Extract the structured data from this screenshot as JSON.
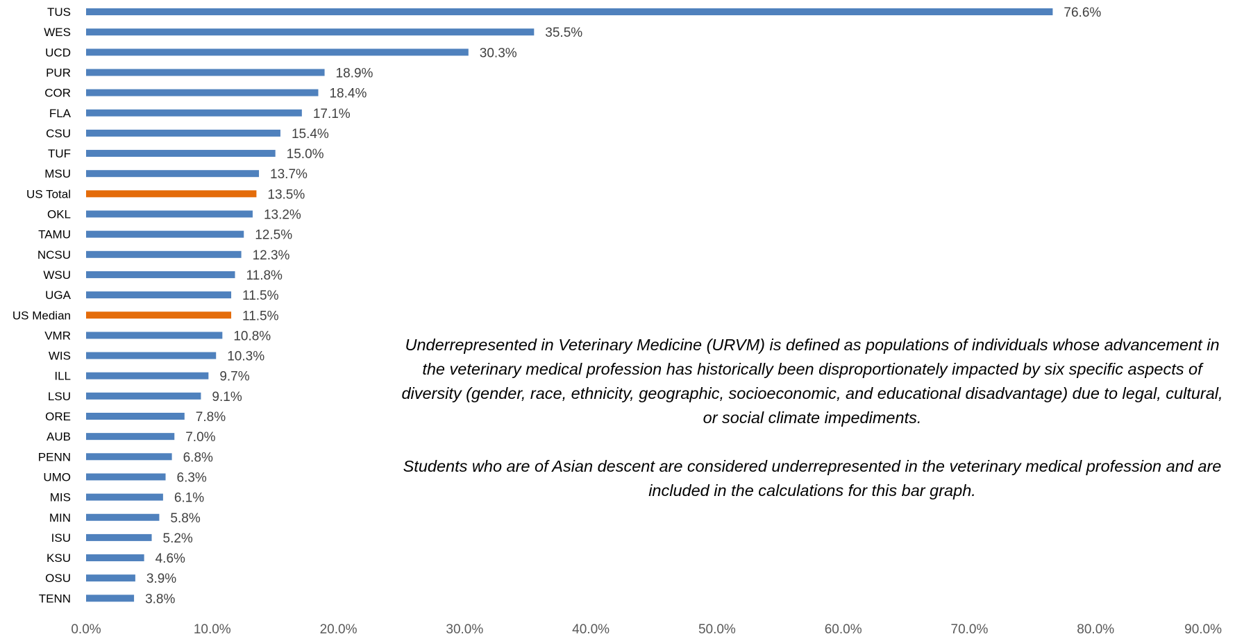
{
  "chart_data": {
    "type": "bar",
    "orientation": "horizontal",
    "categories": [
      "TUS",
      "WES",
      "UCD",
      "PUR",
      "COR",
      "FLA",
      "CSU",
      "TUF",
      "MSU",
      "US Total",
      "OKL",
      "TAMU",
      "NCSU",
      "WSU",
      "UGA",
      "US Median",
      "VMR",
      "WIS",
      "ILL",
      "LSU",
      "ORE",
      "AUB",
      "PENN",
      "UMO",
      "MIS",
      "MIN",
      "ISU",
      "KSU",
      "OSU",
      "TENN"
    ],
    "values": [
      76.6,
      35.5,
      30.3,
      18.9,
      18.4,
      17.1,
      15.4,
      15.0,
      13.7,
      13.5,
      13.2,
      12.5,
      12.3,
      11.8,
      11.5,
      11.5,
      10.8,
      10.3,
      9.7,
      9.1,
      7.8,
      7.0,
      6.8,
      6.3,
      6.1,
      5.8,
      5.2,
      4.6,
      3.9,
      3.8
    ],
    "value_labels": [
      "76.6%",
      "35.5%",
      "30.3%",
      "18.9%",
      "18.4%",
      "17.1%",
      "15.4%",
      "15.0%",
      "13.7%",
      "13.5%",
      "13.2%",
      "12.5%",
      "12.3%",
      "11.8%",
      "11.5%",
      "11.5%",
      "10.8%",
      "10.3%",
      "9.7%",
      "9.1%",
      "7.8%",
      "7.0%",
      "6.8%",
      "6.3%",
      "6.1%",
      "5.8%",
      "5.2%",
      "4.6%",
      "3.9%",
      "3.8%"
    ],
    "highlight_categories": [
      "US Total",
      "US Median"
    ],
    "xlim": [
      0,
      90
    ],
    "x_ticks": [
      "0.0%",
      "10.0%",
      "20.0%",
      "30.0%",
      "40.0%",
      "50.0%",
      "60.0%",
      "70.0%",
      "80.0%",
      "90.0%"
    ],
    "grid": false,
    "legend": "none",
    "colors": {
      "bar": "#4F81BD",
      "highlight_bar": "#E46C0A",
      "highlight_label": "#B85A0E",
      "label": "#404040",
      "tick": "#595959"
    }
  },
  "notes": [
    "Underrepresented in Veterinary Medicine (URVM) is defined as populations of individuals whose advancement in the veterinary medical profession has historically been disproportionately impacted by six specific aspects of diversity (gender, race, ethnicity, geographic, socioeconomic, and educational disadvantage) due to legal, cultural, or social climate impediments.",
    "Students who are of Asian descent are considered underrepresented in the veterinary medical profession and are included in the calculations for this bar graph."
  ]
}
